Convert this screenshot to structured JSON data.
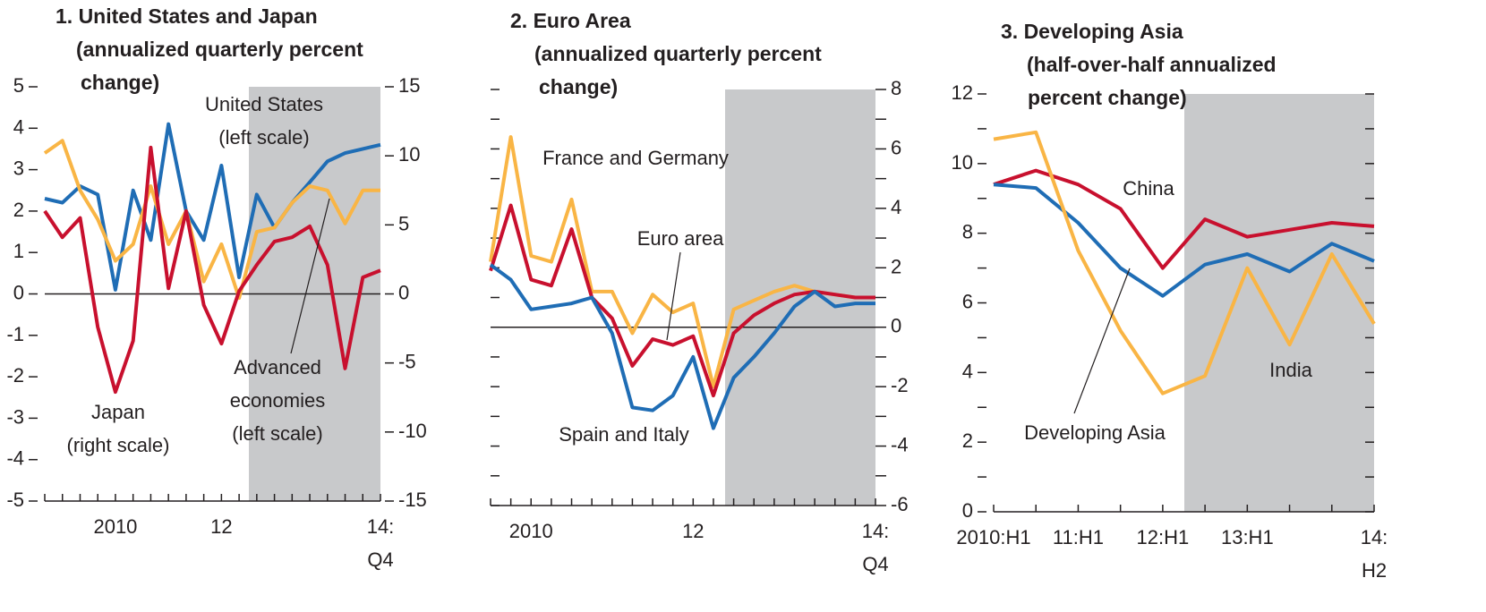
{
  "chart_data": [
    {
      "type": "line",
      "title": "1. United States and Japan\n(annualized quarterly percent\nchange)",
      "categories": [
        null,
        null,
        null,
        null,
        "2010",
        null,
        null,
        null,
        null,
        null,
        "12",
        null,
        null,
        null,
        null,
        null,
        null,
        null,
        null,
        "14:\nQ4"
      ],
      "series": [
        {
          "name": "United States\n(left scale)",
          "color": "#1f6db5",
          "values": [
            2.3,
            2.2,
            2.6,
            2.4,
            0.1,
            2.5,
            1.3,
            4.1,
            2.0,
            1.3,
            3.1,
            0.4,
            2.4,
            1.6,
            2.2,
            2.7,
            3.2,
            3.4,
            3.5,
            3.6
          ]
        },
        {
          "name": "Advanced\neconomies\n(left scale)",
          "color": "#f9b545",
          "values": [
            3.4,
            3.7,
            2.5,
            1.8,
            0.8,
            1.2,
            2.6,
            1.2,
            2.0,
            0.3,
            1.2,
            -0.1,
            1.5,
            1.6,
            2.2,
            2.6,
            2.5,
            1.7,
            2.5,
            2.5
          ]
        },
        {
          "name": "Japan\n(right scale)",
          "color": "#c8102e",
          "axis": "y2",
          "values": [
            6.0,
            4.1,
            5.5,
            -2.4,
            -7.1,
            -3.4,
            10.6,
            0.4,
            6.0,
            -0.8,
            -3.6,
            0.2,
            2.1,
            3.8,
            4.1,
            4.9,
            2.1,
            -5.4,
            1.2,
            1.7
          ]
        }
      ],
      "ylim": [
        -5,
        5
      ],
      "yticks": [
        -5,
        -4,
        -3,
        -2,
        -1,
        0,
        1,
        2,
        3,
        4,
        5
      ],
      "y2lim": [
        -15,
        15
      ],
      "y2ticks": [
        -15,
        -10,
        -5,
        0,
        5,
        10,
        15
      ],
      "zero_line": true
    },
    {
      "type": "line",
      "title": "2. Euro Area\n(annualized quarterly percent\nchange)",
      "categories": [
        null,
        null,
        "2010",
        null,
        null,
        null,
        null,
        null,
        null,
        null,
        "12",
        null,
        null,
        null,
        null,
        null,
        null,
        null,
        null,
        "14:\nQ4"
      ],
      "series": [
        {
          "name": "France and Germany",
          "color": "#f9b545",
          "values": [
            2.2,
            6.4,
            2.4,
            2.2,
            4.3,
            1.2,
            1.2,
            -0.2,
            1.1,
            0.5,
            0.8,
            -2.0,
            0.6,
            0.9,
            1.2,
            1.4,
            1.2,
            1.1,
            1.0,
            1.0
          ]
        },
        {
          "name": "Euro area",
          "color": "#c8102e",
          "values": [
            1.9,
            4.1,
            1.6,
            1.4,
            3.3,
            1.0,
            0.3,
            -1.3,
            -0.4,
            -0.6,
            -0.3,
            -2.3,
            -0.2,
            0.4,
            0.8,
            1.1,
            1.2,
            1.1,
            1.0,
            1.0
          ]
        },
        {
          "name": "Spain and Italy",
          "color": "#1f6db5",
          "values": [
            2.1,
            1.6,
            0.6,
            0.7,
            0.8,
            1.0,
            -0.2,
            -2.7,
            -2.8,
            -2.3,
            -1.0,
            -3.4,
            -1.7,
            -1.0,
            -0.2,
            0.7,
            1.2,
            0.7,
            0.8,
            0.8
          ]
        }
      ],
      "ylim": [
        -6,
        8
      ],
      "yticks": [
        -6,
        -4,
        -2,
        0,
        2,
        4,
        6,
        8
      ],
      "yminorticks": [
        -5,
        -3,
        -1,
        1,
        3,
        5,
        7
      ],
      "yaxis_side": "right",
      "zero_line": true
    },
    {
      "type": "line",
      "title": "3. Developing Asia\n(half-over-half annualized\npercent change)",
      "categories": [
        "2010:H1",
        null,
        "11:H1",
        null,
        "12:H1",
        null,
        "13:H1",
        null,
        null,
        "14:\nH2"
      ],
      "series": [
        {
          "name": "China",
          "color": "#c8102e",
          "values": [
            9.4,
            9.8,
            9.4,
            8.7,
            7.0,
            8.4,
            7.9,
            8.1,
            8.3,
            8.2
          ]
        },
        {
          "name": "Developing Asia",
          "color": "#1f6db5",
          "values": [
            9.4,
            9.3,
            8.3,
            7.0,
            6.2,
            7.1,
            7.4,
            6.9,
            7.7,
            7.2
          ]
        },
        {
          "name": "India",
          "color": "#f9b545",
          "values": [
            10.7,
            10.9,
            7.5,
            5.2,
            3.4,
            3.9,
            7.0,
            4.8,
            7.4,
            5.4
          ]
        }
      ],
      "ylim": [
        0,
        12
      ],
      "yticks": [
        0,
        2,
        4,
        6,
        8,
        10,
        12
      ],
      "yminorticks": [
        1,
        3,
        5,
        7,
        9,
        11
      ],
      "yaxis_side": "left",
      "zero_line": false
    }
  ]
}
